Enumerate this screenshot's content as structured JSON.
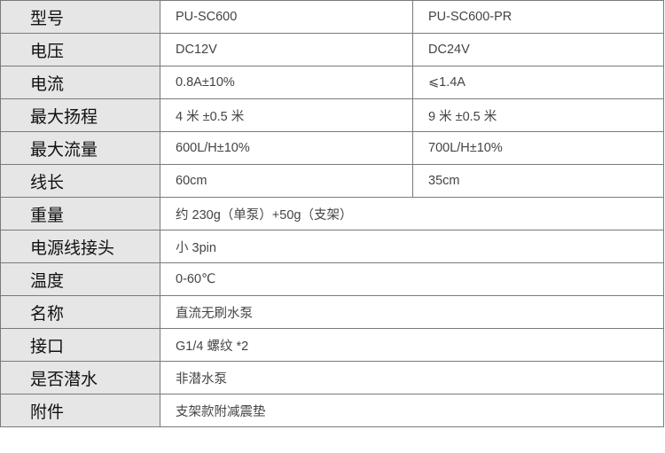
{
  "rows": [
    {
      "label": "型号",
      "values": [
        "PU-SC600",
        "PU-SC600-PR"
      ]
    },
    {
      "label": "电压",
      "values": [
        "DC12V",
        "DC24V"
      ]
    },
    {
      "label": "电流",
      "values": [
        "0.8A±10%",
        "⩽1.4A"
      ]
    },
    {
      "label": "最大扬程",
      "values": [
        "4 米 ±0.5 米",
        "9 米 ±0.5 米"
      ]
    },
    {
      "label": "最大流量",
      "values": [
        "600L/H±10%",
        "700L/H±10%"
      ]
    },
    {
      "label": "线长",
      "values": [
        "60cm",
        "35cm"
      ]
    },
    {
      "label": "重量",
      "values": [
        "约 230g（单泵）+50g（支架）"
      ]
    },
    {
      "label": "电源线接头",
      "values": [
        "小 3pin"
      ]
    },
    {
      "label": "温度",
      "values": [
        "0-60℃"
      ]
    },
    {
      "label": "名称",
      "values": [
        "直流无刷水泵"
      ]
    },
    {
      "label": "接口",
      "values": [
        "G1/4 螺纹 *2"
      ]
    },
    {
      "label": "是否潜水",
      "values": [
        "非潜水泵"
      ]
    },
    {
      "label": "附件",
      "values": [
        "支架款附减震垫"
      ]
    }
  ]
}
